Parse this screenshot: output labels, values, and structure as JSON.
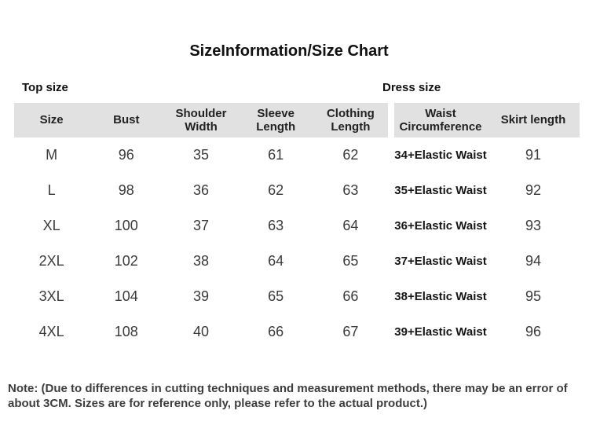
{
  "header": {
    "title": "SizeInformation/Size Chart"
  },
  "colors": {
    "page_background": "#ffffff",
    "header_row_background": "#e1e1e1",
    "header_text": "#222222",
    "data_text": "#3a3a3a",
    "bold_cell_text": "#161616",
    "note_text": "#3d3d3d"
  },
  "chart_data": {
    "type": "table",
    "title": "SizeInformation/Size Chart",
    "groups": [
      {
        "label": "Top size",
        "columns": [
          "Size",
          "Bust",
          "Shoulder Width",
          "Sleeve Length",
          "Clothing Length"
        ],
        "rows": [
          [
            "M",
            "96",
            "35",
            "61",
            "62"
          ],
          [
            "L",
            "98",
            "36",
            "62",
            "63"
          ],
          [
            "XL",
            "100",
            "37",
            "63",
            "64"
          ],
          [
            "2XL",
            "102",
            "38",
            "64",
            "65"
          ],
          [
            "3XL",
            "104",
            "39",
            "65",
            "66"
          ],
          [
            "4XL",
            "108",
            "40",
            "66",
            "67"
          ]
        ],
        "bold_columns": []
      },
      {
        "label": "Dress size",
        "columns": [
          "Waist Circumference",
          "Skirt length"
        ],
        "rows": [
          [
            "34+Elastic Waist",
            "91"
          ],
          [
            "35+Elastic Waist",
            "92"
          ],
          [
            "36+Elastic Waist",
            "93"
          ],
          [
            "37+Elastic Waist",
            "94"
          ],
          [
            "38+Elastic Waist",
            "95"
          ],
          [
            "39+Elastic Waist",
            "96"
          ]
        ],
        "bold_columns": [
          0
        ]
      }
    ],
    "note": "Note: (Due to differences in cutting techniques and measurement methods, there may be an error of about 3CM. Sizes are for reference only, please refer to the actual product.)"
  }
}
